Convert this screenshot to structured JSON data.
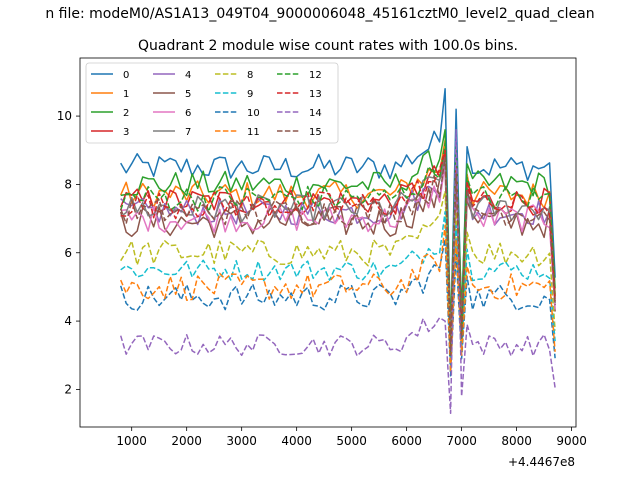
{
  "figure": {
    "suptitle": "n file: modeM0/AS1A13_049T04_9000006048_45161cztM0_level2_quad_clean",
    "title": "Quadrant 2 module wise count rates with 100.0s bins.",
    "offset_label": "+4.4467e8"
  },
  "chart_data": {
    "type": "line",
    "title": "Quadrant 2 module wise count rates with 100.0s bins.",
    "xlabel": "",
    "ylabel": "",
    "x_offset": 444670000,
    "xlim": [
      60,
      9080
    ],
    "ylim": [
      0.9,
      11.7
    ],
    "xticks": [
      1000,
      2000,
      3000,
      4000,
      5000,
      6000,
      7000,
      8000,
      9000
    ],
    "yticks": [
      2,
      4,
      6,
      8,
      10
    ],
    "x_range": [
      800,
      8700
    ],
    "bin_width": 100,
    "grid": false,
    "legend": {
      "placement": "top-left",
      "columns": 4
    },
    "series": [
      {
        "name": "0",
        "color": "#1f77b4",
        "dash": false,
        "level": 8.5,
        "noise": 0.25,
        "dip": 3.5,
        "spike": 10.8,
        "spike2": 10.2
      },
      {
        "name": "1",
        "color": "#ff7f0e",
        "dash": false,
        "level": 7.7,
        "noise": 0.25,
        "dip": 3.0,
        "spike": 9.3,
        "spike2": 8.6
      },
      {
        "name": "2",
        "color": "#2ca02c",
        "dash": false,
        "level": 8.0,
        "noise": 0.25,
        "dip": 3.8,
        "spike": 9.6,
        "spike2": 9.1
      },
      {
        "name": "3",
        "color": "#d62728",
        "dash": false,
        "level": 7.5,
        "noise": 0.25,
        "dip": 3.3,
        "spike": 9.0,
        "spike2": 8.7
      },
      {
        "name": "4",
        "color": "#9467bd",
        "dash": false,
        "level": 7.2,
        "noise": 0.25,
        "dip": 3.0,
        "spike": 8.7,
        "spike2": 8.2
      },
      {
        "name": "5",
        "color": "#8c564b",
        "dash": false,
        "level": 6.9,
        "noise": 0.3,
        "dip": 2.8,
        "spike": 8.5,
        "spike2": 8.0
      },
      {
        "name": "6",
        "color": "#e377c2",
        "dash": false,
        "level": 7.0,
        "noise": 0.25,
        "dip": 3.2,
        "spike": 8.6,
        "spike2": 8.1
      },
      {
        "name": "7",
        "color": "#7f7f7f",
        "dash": false,
        "level": 7.3,
        "noise": 0.25,
        "dip": 3.4,
        "spike": 8.8,
        "spike2": 8.4
      },
      {
        "name": "8",
        "color": "#bcbd22",
        "dash": true,
        "level": 6.0,
        "noise": 0.25,
        "dip": 2.9,
        "spike": 7.8,
        "spike2": 7.2
      },
      {
        "name": "9",
        "color": "#17becf",
        "dash": true,
        "level": 5.5,
        "noise": 0.2,
        "dip": 2.6,
        "spike": 7.2,
        "spike2": 6.8
      },
      {
        "name": "10",
        "color": "#1f77b4",
        "dash": true,
        "level": 4.7,
        "noise": 0.25,
        "dip": 2.4,
        "spike": 6.4,
        "spike2": 6.0
      },
      {
        "name": "11",
        "color": "#ff7f0e",
        "dash": true,
        "level": 5.0,
        "noise": 0.25,
        "dip": 2.5,
        "spike": 6.8,
        "spike2": 6.4
      },
      {
        "name": "12",
        "color": "#2ca02c",
        "dash": true,
        "level": 7.6,
        "noise": 0.25,
        "dip": 3.0,
        "spike": 9.2,
        "spike2": 8.8
      },
      {
        "name": "13",
        "color": "#d62728",
        "dash": true,
        "level": 7.4,
        "noise": 0.25,
        "dip": 3.1,
        "spike": 9.0,
        "spike2": 8.5
      },
      {
        "name": "14",
        "color": "#9467bd",
        "dash": true,
        "level": 3.3,
        "noise": 0.2,
        "dip": 1.3,
        "spike": 4.0,
        "spike2": 9.6
      },
      {
        "name": "15",
        "color": "#8c564b",
        "dash": true,
        "level": 7.2,
        "noise": 0.25,
        "dip": 3.0,
        "spike": 8.8,
        "spike2": 8.3
      }
    ]
  }
}
